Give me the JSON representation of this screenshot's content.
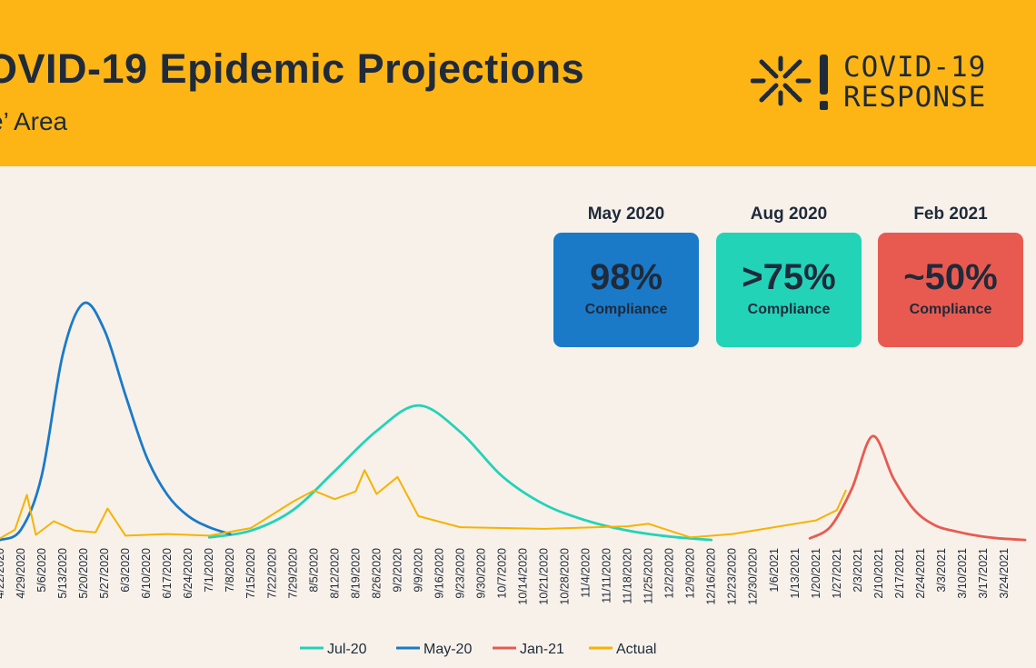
{
  "header": {
    "title": "OVID-19 Epidemic Projections",
    "subtitle": "e’ Area",
    "logo_line1": "COVID-19",
    "logo_line2": "RESPONSE",
    "background": "#fdb515"
  },
  "cards": [
    {
      "heading": "May 2020",
      "value": "98%",
      "label": "Compliance",
      "color": "#1a7ac8"
    },
    {
      "heading": "Aug 2020",
      "value": ">75%",
      "label": "Compliance",
      "color": "#22d3b8"
    },
    {
      "heading": "Feb 2021",
      "value": "~50%",
      "label": "Compliance",
      "color": "#e85a50"
    }
  ],
  "chart_data": {
    "type": "line",
    "x_start": "4/22/2020",
    "x_end": "3/31/2021",
    "x_ticks": [
      "4/22/2020",
      "4/29/2020",
      "5/6/2020",
      "5/13/2020",
      "5/20/2020",
      "5/27/2020",
      "6/3/2020",
      "6/10/2020",
      "6/17/2020",
      "6/24/2020",
      "7/1/2020",
      "7/8/2020",
      "7/15/2020",
      "7/22/2020",
      "7/29/2020",
      "8/5/2020",
      "8/12/2020",
      "8/19/2020",
      "8/26/2020",
      "9/2/2020",
      "9/9/2020",
      "9/16/2020",
      "9/23/2020",
      "9/30/2020",
      "10/7/2020",
      "10/14/2020",
      "10/21/2020",
      "10/28/2020",
      "11/4/2020",
      "11/11/2020",
      "11/18/2020",
      "11/25/2020",
      "12/2/2020",
      "12/9/2020",
      "12/16/2020",
      "12/23/2020",
      "12/30/2020",
      "1/6/2021",
      "1/13/2021",
      "1/20/2021",
      "1/27/2021",
      "2/3/2021",
      "2/10/2021",
      "2/17/2021",
      "2/24/2021",
      "3/3/2021",
      "3/10/2021",
      "3/17/2021",
      "3/24/2021"
    ],
    "ylim": [
      0,
      300
    ],
    "grid": false,
    "legend_position": "bottom",
    "series": [
      {
        "name": "Jul-20",
        "color": "#22d3b8",
        "points": [
          [
            "7/1/2020",
            5
          ],
          [
            "7/15/2020",
            13
          ],
          [
            "7/29/2020",
            37
          ],
          [
            "8/12/2020",
            83
          ],
          [
            "8/26/2020",
            130
          ],
          [
            "9/9/2020",
            160
          ],
          [
            "9/23/2020",
            129
          ],
          [
            "10/7/2020",
            77
          ],
          [
            "10/21/2020",
            44
          ],
          [
            "11/4/2020",
            25
          ],
          [
            "11/18/2020",
            13
          ],
          [
            "12/2/2020",
            6
          ],
          [
            "12/16/2020",
            2
          ]
        ]
      },
      {
        "name": "May-20",
        "color": "#1a7ac8",
        "points": [
          [
            "4/22/2020",
            2
          ],
          [
            "4/29/2020",
            14
          ],
          [
            "5/6/2020",
            78
          ],
          [
            "5/13/2020",
            220
          ],
          [
            "5/20/2020",
            280
          ],
          [
            "5/27/2020",
            248
          ],
          [
            "6/3/2020",
            172
          ],
          [
            "6/10/2020",
            100
          ],
          [
            "6/17/2020",
            55
          ],
          [
            "6/24/2020",
            30
          ],
          [
            "7/1/2020",
            17
          ],
          [
            "7/8/2020",
            9
          ]
        ]
      },
      {
        "name": "Jan-21",
        "color": "#e85a50",
        "points": [
          [
            "1/18/2021",
            4
          ],
          [
            "1/25/2021",
            18
          ],
          [
            "2/1/2021",
            62
          ],
          [
            "2/8/2021",
            124
          ],
          [
            "2/15/2021",
            74
          ],
          [
            "2/22/2021",
            37
          ],
          [
            "3/1/2021",
            19
          ],
          [
            "3/8/2021",
            12
          ],
          [
            "3/15/2021",
            7
          ],
          [
            "3/22/2021",
            4
          ],
          [
            "3/31/2021",
            2
          ]
        ]
      },
      {
        "name": "Actual",
        "color": "#f6b300",
        "points": [
          [
            "4/22/2020",
            4
          ],
          [
            "4/27/2020",
            14
          ],
          [
            "5/1/2020",
            55
          ],
          [
            "5/4/2020",
            8
          ],
          [
            "5/10/2020",
            24
          ],
          [
            "5/17/2020",
            13
          ],
          [
            "5/24/2020",
            11
          ],
          [
            "5/28/2020",
            39
          ],
          [
            "6/3/2020",
            7
          ],
          [
            "6/17/2020",
            9
          ],
          [
            "7/1/2020",
            7
          ],
          [
            "7/15/2020",
            16
          ],
          [
            "7/29/2020",
            47
          ],
          [
            "8/5/2020",
            60
          ],
          [
            "8/12/2020",
            50
          ],
          [
            "8/19/2020",
            59
          ],
          [
            "8/22/2020",
            84
          ],
          [
            "8/26/2020",
            56
          ],
          [
            "9/2/2020",
            76
          ],
          [
            "9/9/2020",
            30
          ],
          [
            "9/23/2020",
            17
          ],
          [
            "10/21/2020",
            15
          ],
          [
            "11/18/2020",
            18
          ],
          [
            "11/25/2020",
            21
          ],
          [
            "12/9/2020",
            5
          ],
          [
            "12/23/2020",
            9
          ],
          [
            "1/6/2021",
            17
          ],
          [
            "1/20/2021",
            25
          ],
          [
            "1/27/2021",
            37
          ],
          [
            "1/30/2021",
            60
          ]
        ]
      }
    ]
  }
}
